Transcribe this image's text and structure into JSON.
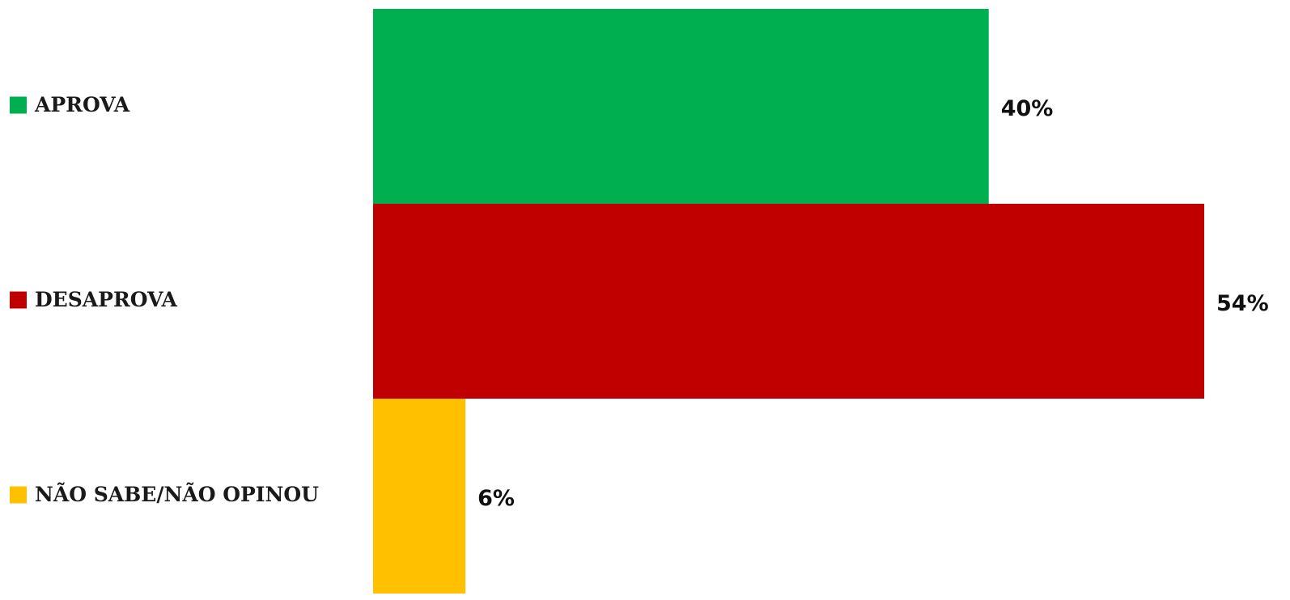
{
  "chart_data": {
    "type": "bar",
    "orientation": "horizontal",
    "categories": [
      "APROVA",
      "DESAPROVA",
      "NÃO SABE/NÃO OPINOU"
    ],
    "values": [
      40,
      54,
      6
    ],
    "value_labels": [
      "40%",
      "54%",
      "6%"
    ],
    "colors": [
      "#00B050",
      "#C00000",
      "#FFC000"
    ],
    "unit": "%",
    "xlim": [
      0,
      54
    ],
    "title": "",
    "xlabel": "",
    "ylabel": "",
    "grid": false,
    "legend": "left"
  }
}
